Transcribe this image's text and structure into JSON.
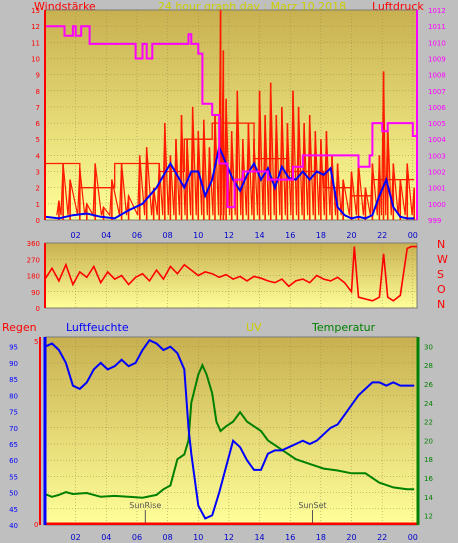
{
  "page_title": "24 hour graph day : Marz 10,2018",
  "colors": {
    "background": "#bfbfbf",
    "panel_top": "#c8b050",
    "panel_bottom": "#ffff99",
    "grid": "#9a8a4a",
    "wind": "#ff1a00",
    "wind_avg": "#0000ff",
    "pressure": "#ff00ff",
    "direction": "#ff0000",
    "humidity": "#0000ff",
    "temperature": "#008000",
    "uv": "#cccc00",
    "rain": "#ff0000",
    "title": "#cccc00"
  },
  "chart_data": [
    {
      "type": "line",
      "name": "wind-pressure",
      "title": "24 hour graph day : Marz 10,2018",
      "left_label": "Windstärke",
      "right_label": "Luftdruck",
      "x_ticks": [
        "02",
        "04",
        "06",
        "08",
        "10",
        "12",
        "14",
        "16",
        "18",
        "20",
        "22",
        "00"
      ],
      "y_left": {
        "min": 0,
        "max": 13,
        "ticks": [
          "0",
          "1",
          "2",
          "3",
          "4",
          "5",
          "6",
          "7",
          "8",
          "9",
          "10",
          "11",
          "12",
          "13"
        ]
      },
      "y_right": {
        "min": 999,
        "max": 1012,
        "ticks": [
          "999",
          "1000",
          "1001",
          "1002",
          "1003",
          "1004",
          "1005",
          "1006",
          "1007",
          "1008",
          "1009",
          "1010",
          "1011",
          "1012"
        ]
      },
      "wind_avg": [
        [
          0,
          0.2
        ],
        [
          1,
          0.1
        ],
        [
          2,
          0.3
        ],
        [
          3,
          0.4
        ],
        [
          4,
          0.2
        ],
        [
          5,
          0.1
        ],
        [
          6,
          0.6
        ],
        [
          7,
          1
        ],
        [
          8,
          2
        ],
        [
          9,
          3.5
        ],
        [
          10,
          2
        ],
        [
          10.5,
          3
        ],
        [
          11,
          3
        ],
        [
          11.5,
          1.5
        ],
        [
          12,
          2.5
        ],
        [
          12.5,
          4.5
        ],
        [
          13,
          3.5
        ],
        [
          13.5,
          2.5
        ],
        [
          14,
          1.8
        ],
        [
          14.5,
          2.8
        ],
        [
          15,
          3.5
        ],
        [
          15.5,
          2.5
        ],
        [
          16,
          3.2
        ],
        [
          16.5,
          2
        ],
        [
          17,
          3.3
        ],
        [
          17.5,
          2.6
        ],
        [
          18,
          2.5
        ],
        [
          18.5,
          3
        ],
        [
          19,
          2.5
        ],
        [
          19.5,
          3
        ],
        [
          20,
          2.8
        ],
        [
          20.5,
          3.2
        ],
        [
          21,
          0.8
        ],
        [
          21.5,
          0.3
        ],
        [
          22,
          0.1
        ],
        [
          22.5,
          0.2
        ],
        [
          23,
          0.1
        ],
        [
          23.5,
          0.3
        ],
        [
          24,
          1.5
        ],
        [
          24.5,
          2.5
        ],
        [
          25,
          0.8
        ],
        [
          25.5,
          0.2
        ],
        [
          26,
          0.1
        ],
        [
          26.5,
          0.1
        ]
      ],
      "wind_gust_peaks": [
        [
          1,
          1.2
        ],
        [
          1.3,
          3.5
        ],
        [
          1.8,
          2.5
        ],
        [
          2.5,
          3.2
        ],
        [
          3,
          1
        ],
        [
          3.6,
          3.5
        ],
        [
          4.2,
          0.8
        ],
        [
          4.8,
          2.5
        ],
        [
          5.5,
          3.5
        ],
        [
          6,
          1.5
        ],
        [
          6.8,
          4
        ],
        [
          7.3,
          4.5
        ],
        [
          7.8,
          2
        ],
        [
          8.2,
          3.5
        ],
        [
          8.6,
          6
        ],
        [
          9,
          4
        ],
        [
          9.4,
          5
        ],
        [
          9.8,
          6.5
        ],
        [
          10.2,
          5
        ],
        [
          10.6,
          7
        ],
        [
          11,
          5.5
        ],
        [
          11.4,
          6.2
        ],
        [
          11.8,
          4.5
        ],
        [
          12.2,
          6.5
        ],
        [
          12.6,
          13
        ],
        [
          12.8,
          10.5
        ],
        [
          13,
          7.5
        ],
        [
          13.4,
          5.5
        ],
        [
          13.8,
          8
        ],
        [
          14.2,
          5
        ],
        [
          14.6,
          6
        ],
        [
          15,
          5
        ],
        [
          15.4,
          8
        ],
        [
          15.8,
          6.5
        ],
        [
          16.2,
          8.5
        ],
        [
          16.6,
          6.5
        ],
        [
          17,
          7
        ],
        [
          17.4,
          6
        ],
        [
          17.8,
          8
        ],
        [
          18.2,
          7
        ],
        [
          18.6,
          6
        ],
        [
          19,
          6.5
        ],
        [
          19.4,
          5.5
        ],
        [
          19.8,
          5
        ],
        [
          20.2,
          5.5
        ],
        [
          20.6,
          4
        ],
        [
          21,
          3.5
        ],
        [
          21.4,
          2.5
        ],
        [
          22,
          3
        ],
        [
          22.5,
          3.5
        ],
        [
          23,
          2
        ],
        [
          23.5,
          3.5
        ],
        [
          24,
          4
        ],
        [
          24.3,
          9.2
        ],
        [
          24.6,
          6
        ],
        [
          25,
          3.5
        ],
        [
          25.5,
          2.5
        ],
        [
          26,
          3.5
        ],
        [
          26.5,
          2
        ]
      ],
      "wind_gust_steps": [
        [
          0,
          3.5
        ],
        [
          2.5,
          3.5
        ],
        [
          2.5,
          2
        ],
        [
          5,
          2
        ],
        [
          5,
          3.5
        ],
        [
          8.2,
          3.5
        ],
        [
          8.2,
          3
        ],
        [
          10,
          3
        ],
        [
          10,
          5
        ],
        [
          12,
          5
        ],
        [
          12,
          6
        ],
        [
          15,
          6
        ],
        [
          15,
          3.8
        ],
        [
          17.5,
          3.8
        ],
        [
          17.5,
          3
        ],
        [
          20,
          3
        ],
        [
          20,
          2
        ],
        [
          22,
          2
        ],
        [
          22,
          1.5
        ],
        [
          23.5,
          1.5
        ],
        [
          23.5,
          2.5
        ],
        [
          26.5,
          2.5
        ]
      ],
      "pressure": [
        [
          0,
          1011
        ],
        [
          1.4,
          1011
        ],
        [
          1.4,
          1010.4
        ],
        [
          2,
          1010.4
        ],
        [
          2,
          1011
        ],
        [
          2.2,
          1011
        ],
        [
          2.2,
          1010.4
        ],
        [
          2.6,
          1010.4
        ],
        [
          2.6,
          1011
        ],
        [
          3.2,
          1011
        ],
        [
          3.2,
          1009.9
        ],
        [
          6.5,
          1009.9
        ],
        [
          6.5,
          1009
        ],
        [
          7,
          1009
        ],
        [
          7,
          1009.9
        ],
        [
          7.3,
          1009.9
        ],
        [
          7.3,
          1009
        ],
        [
          7.7,
          1009
        ],
        [
          7.7,
          1009.9
        ],
        [
          10.3,
          1009.9
        ],
        [
          10.3,
          1010.5
        ],
        [
          10.5,
          1010.5
        ],
        [
          10.5,
          1009.9
        ],
        [
          11,
          1009.9
        ],
        [
          11,
          1009.3
        ],
        [
          11.3,
          1009.3
        ],
        [
          11.3,
          1006.2
        ],
        [
          12,
          1006.2
        ],
        [
          12,
          1005.5
        ],
        [
          12.5,
          1005.5
        ],
        [
          12.5,
          1002.5
        ],
        [
          13.1,
          1002.5
        ],
        [
          13.1,
          999.8
        ],
        [
          13.6,
          999.8
        ],
        [
          13.6,
          1001.5
        ],
        [
          14.2,
          1001.5
        ],
        [
          14.2,
          1002
        ],
        [
          16,
          1002
        ],
        [
          16,
          1001.5
        ],
        [
          17.8,
          1001.5
        ],
        [
          17.8,
          1002.3
        ],
        [
          18.5,
          1002.3
        ],
        [
          18.5,
          1003
        ],
        [
          22.5,
          1003
        ],
        [
          22.5,
          1002.3
        ],
        [
          23.3,
          1002.3
        ],
        [
          23.3,
          1003
        ],
        [
          23.5,
          1003
        ],
        [
          23.5,
          1005
        ],
        [
          24.2,
          1005
        ],
        [
          24.2,
          1004.5
        ],
        [
          24.6,
          1004.5
        ],
        [
          24.6,
          1005
        ],
        [
          26.4,
          1005
        ],
        [
          26.4,
          1004.2
        ],
        [
          26.7,
          1004.2
        ]
      ]
    },
    {
      "type": "line",
      "name": "wind-direction",
      "y_ticks": [
        "0",
        "90",
        "180",
        "270",
        "360"
      ],
      "y_range": [
        0,
        360
      ],
      "compass_labels": [
        "N",
        "W",
        "S",
        "O",
        "N"
      ],
      "direction": [
        [
          0,
          160
        ],
        [
          0.5,
          220
        ],
        [
          1,
          150
        ],
        [
          1.5,
          240
        ],
        [
          2,
          130
        ],
        [
          2.5,
          200
        ],
        [
          3,
          170
        ],
        [
          3.5,
          230
        ],
        [
          4,
          140
        ],
        [
          4.5,
          200
        ],
        [
          5,
          160
        ],
        [
          5.5,
          180
        ],
        [
          6,
          130
        ],
        [
          6.5,
          170
        ],
        [
          7,
          190
        ],
        [
          7.5,
          150
        ],
        [
          8,
          210
        ],
        [
          8.5,
          160
        ],
        [
          9,
          230
        ],
        [
          9.5,
          190
        ],
        [
          10,
          240
        ],
        [
          10.5,
          210
        ],
        [
          11,
          180
        ],
        [
          11.5,
          200
        ],
        [
          12,
          190
        ],
        [
          12.5,
          170
        ],
        [
          13,
          185
        ],
        [
          13.5,
          160
        ],
        [
          14,
          175
        ],
        [
          14.5,
          150
        ],
        [
          15,
          175
        ],
        [
          15.5,
          165
        ],
        [
          16,
          150
        ],
        [
          16.5,
          140
        ],
        [
          17,
          160
        ],
        [
          17.5,
          120
        ],
        [
          18,
          150
        ],
        [
          18.5,
          160
        ],
        [
          19,
          140
        ],
        [
          19.5,
          180
        ],
        [
          20,
          160
        ],
        [
          20.5,
          150
        ],
        [
          21,
          170
        ],
        [
          21.5,
          140
        ],
        [
          22,
          90
        ],
        [
          22.2,
          340
        ],
        [
          22.5,
          60
        ],
        [
          23,
          50
        ],
        [
          23.5,
          40
        ],
        [
          24,
          60
        ],
        [
          24.3,
          300
        ],
        [
          24.6,
          60
        ],
        [
          25,
          40
        ],
        [
          25.5,
          70
        ],
        [
          26,
          330
        ],
        [
          26.3,
          340
        ],
        [
          26.7,
          340
        ]
      ]
    },
    {
      "type": "line",
      "name": "weather",
      "labels": {
        "rain": "Regen",
        "humidity": "Luftfeuchte",
        "uv": "UV",
        "temperature": "Temperatur"
      },
      "x_ticks": [
        "02",
        "04",
        "06",
        "08",
        "10",
        "12",
        "14",
        "16",
        "18",
        "20",
        "22",
        "00"
      ],
      "humidity_axis": {
        "min": 40,
        "max": 98,
        "ticks": [
          "40",
          "45",
          "50",
          "55",
          "60",
          "65",
          "70",
          "75",
          "80",
          "85",
          "90",
          "95"
        ]
      },
      "temperature_axis": {
        "min": 11,
        "max": 31,
        "ticks": [
          "12",
          "14",
          "16",
          "18",
          "20",
          "22",
          "24",
          "26",
          "28",
          "30"
        ]
      },
      "rain_axis_top": "5",
      "rain_axis_bottom": "0",
      "annotations": [
        {
          "label": "SunRise",
          "x": 7.2
        },
        {
          "label": "SunSet",
          "x": 19.2
        }
      ],
      "humidity": [
        [
          0,
          95
        ],
        [
          0.5,
          96
        ],
        [
          1,
          94
        ],
        [
          1.5,
          90
        ],
        [
          2,
          83
        ],
        [
          2.5,
          82
        ],
        [
          3,
          84
        ],
        [
          3.5,
          88
        ],
        [
          4,
          90
        ],
        [
          4.5,
          88
        ],
        [
          5,
          89
        ],
        [
          5.5,
          91
        ],
        [
          6,
          89
        ],
        [
          6.5,
          90
        ],
        [
          7,
          94
        ],
        [
          7.5,
          97
        ],
        [
          8,
          96
        ],
        [
          8.5,
          94
        ],
        [
          9,
          95
        ],
        [
          9.5,
          93
        ],
        [
          10,
          88
        ],
        [
          10.3,
          70
        ],
        [
          10.5,
          62
        ],
        [
          11,
          46
        ],
        [
          11.5,
          42
        ],
        [
          12,
          43
        ],
        [
          12.5,
          50
        ],
        [
          13,
          58
        ],
        [
          13.5,
          66
        ],
        [
          14,
          64
        ],
        [
          14.5,
          60
        ],
        [
          15,
          57
        ],
        [
          15.5,
          57
        ],
        [
          16,
          62
        ],
        [
          16.5,
          63
        ],
        [
          17,
          63
        ],
        [
          17.5,
          64
        ],
        [
          18,
          65
        ],
        [
          18.5,
          66
        ],
        [
          19,
          65
        ],
        [
          19.5,
          66
        ],
        [
          20,
          68
        ],
        [
          20.5,
          70
        ],
        [
          21,
          71
        ],
        [
          21.5,
          74
        ],
        [
          22,
          77
        ],
        [
          22.5,
          80
        ],
        [
          23,
          82
        ],
        [
          23.5,
          84
        ],
        [
          24,
          84
        ],
        [
          24.5,
          83
        ],
        [
          25,
          84
        ],
        [
          25.5,
          83
        ],
        [
          26,
          83
        ],
        [
          26.5,
          83
        ]
      ],
      "temperature": [
        [
          0,
          14.3
        ],
        [
          0.5,
          14
        ],
        [
          1,
          14.2
        ],
        [
          1.5,
          14.5
        ],
        [
          2,
          14.3
        ],
        [
          3,
          14.4
        ],
        [
          4,
          14
        ],
        [
          5,
          14.1
        ],
        [
          6,
          14
        ],
        [
          7,
          13.9
        ],
        [
          8,
          14.2
        ],
        [
          8.5,
          14.8
        ],
        [
          9,
          15.2
        ],
        [
          9.5,
          18
        ],
        [
          10,
          18.5
        ],
        [
          10.3,
          20
        ],
        [
          10.5,
          24
        ],
        [
          11,
          27
        ],
        [
          11.3,
          28
        ],
        [
          11.6,
          27
        ],
        [
          12,
          25
        ],
        [
          12.3,
          22
        ],
        [
          12.6,
          21
        ],
        [
          13,
          21.5
        ],
        [
          13.5,
          22
        ],
        [
          14,
          23
        ],
        [
          14.5,
          22
        ],
        [
          15,
          21.5
        ],
        [
          15.5,
          21
        ],
        [
          16,
          20
        ],
        [
          17,
          19
        ],
        [
          18,
          18
        ],
        [
          19,
          17.5
        ],
        [
          20,
          17
        ],
        [
          21,
          16.8
        ],
        [
          22,
          16.5
        ],
        [
          23,
          16.5
        ],
        [
          24,
          15.5
        ],
        [
          25,
          15
        ],
        [
          26,
          14.8
        ],
        [
          26.5,
          14.8
        ]
      ],
      "rain": [
        [
          0,
          0
        ],
        [
          26.7,
          0
        ]
      ]
    }
  ]
}
